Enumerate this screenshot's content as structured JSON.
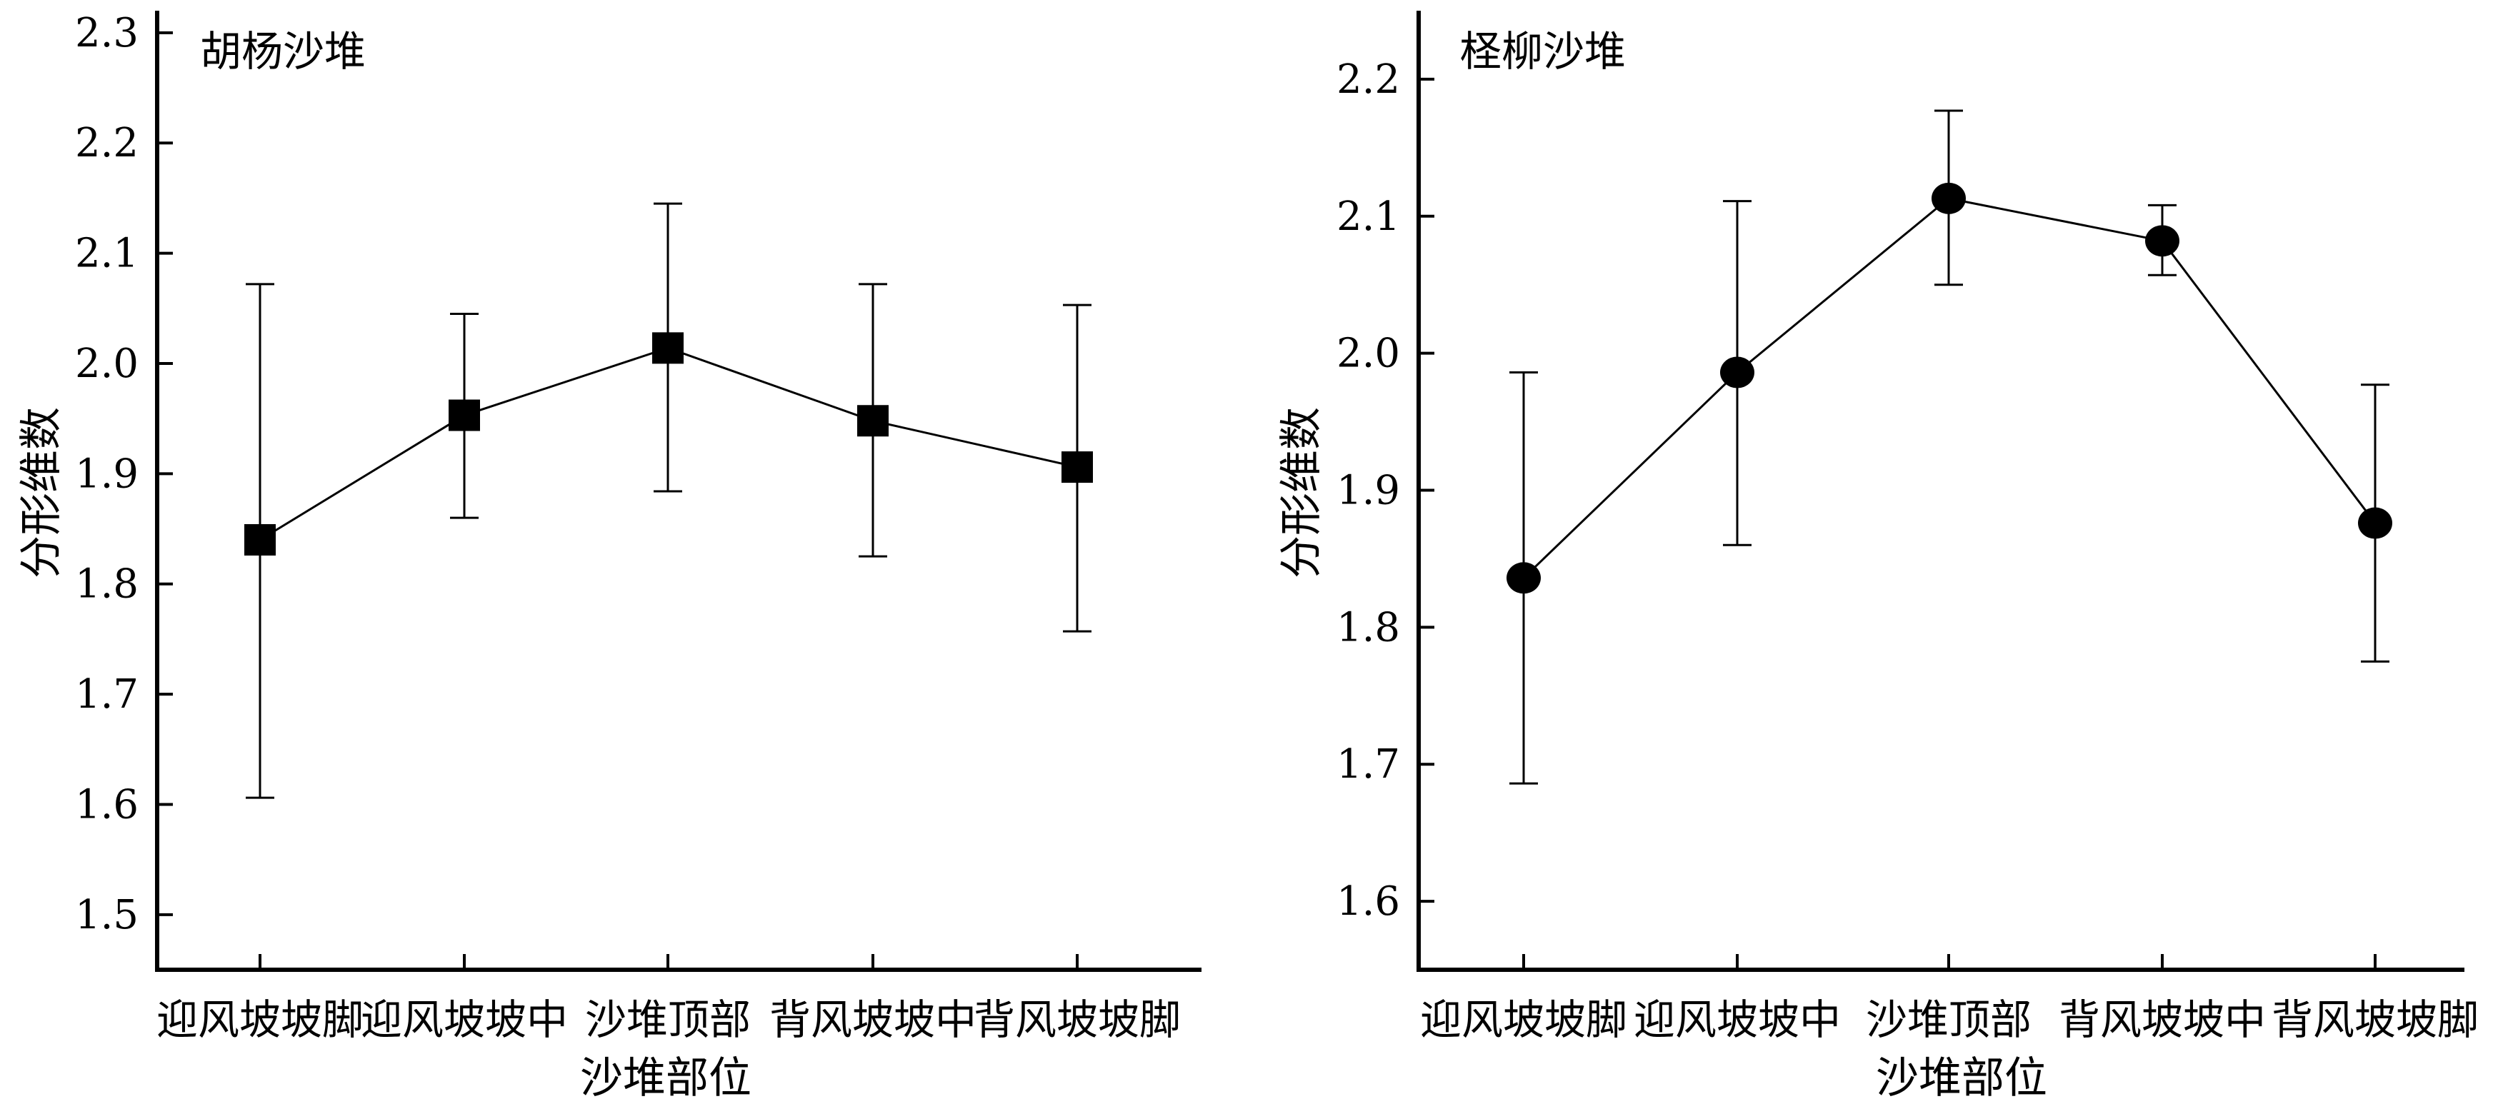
{
  "chart_data": [
    {
      "type": "line",
      "title": "胡杨沙堆",
      "xlabel": "沙堆部位",
      "ylabel": "分形维数",
      "categories": [
        "迎风坡坡脚",
        "迎风坡坡中",
        "沙堆顶部",
        "背风坡坡中",
        "背风坡坡脚"
      ],
      "yticks": [
        "1.5",
        "1.6",
        "1.7",
        "1.8",
        "1.9",
        "2.0",
        "2.1",
        "2.2",
        "2.3"
      ],
      "ylim": [
        1.45,
        2.32
      ],
      "marker": "square",
      "series": [
        {
          "values": [
            1.84,
            1.953,
            2.014,
            1.948,
            1.906
          ],
          "error_low": [
            1.606,
            1.86,
            1.884,
            1.825,
            1.757
          ],
          "error_high": [
            2.072,
            2.045,
            2.145,
            2.072,
            2.053
          ]
        }
      ],
      "grid": false,
      "legend": "none"
    },
    {
      "type": "line",
      "title": "柽柳沙堆",
      "xlabel": "沙堆部位",
      "ylabel": "分形维数",
      "categories": [
        "迎风坡坡脚",
        "迎风坡坡中",
        "沙堆顶部",
        "背风坡坡中",
        "背风坡坡脚"
      ],
      "yticks": [
        "1.6",
        "1.7",
        "1.8",
        "1.9",
        "2.0",
        "2.1",
        "2.2"
      ],
      "ylim": [
        1.55,
        2.25
      ],
      "marker": "circle",
      "series": [
        {
          "values": [
            1.836,
            1.986,
            2.113,
            2.082,
            1.876
          ],
          "error_low": [
            1.686,
            1.86,
            2.05,
            2.057,
            1.775
          ],
          "error_high": [
            1.986,
            2.111,
            2.177,
            2.108,
            1.977
          ]
        }
      ],
      "grid": false,
      "legend": "none"
    }
  ]
}
